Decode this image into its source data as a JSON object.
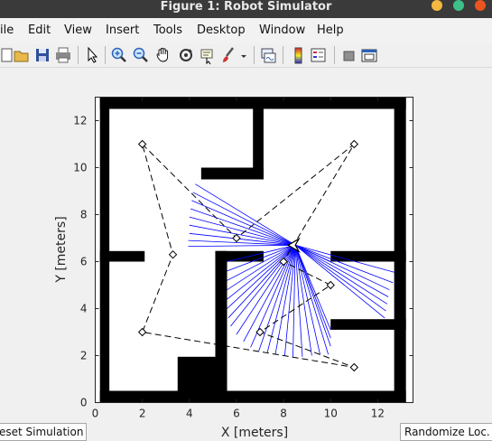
{
  "window": {
    "title": "Figure 1: Robot Simulator"
  },
  "menu": [
    {
      "label": "ile"
    },
    {
      "label": "Edit"
    },
    {
      "label": "View"
    },
    {
      "label": "Insert"
    },
    {
      "label": "Tools"
    },
    {
      "label": "Desktop"
    },
    {
      "label": "Window"
    },
    {
      "label": "Help"
    }
  ],
  "toolbar": {
    "icons": [
      "new-figure-icon",
      "open-file-icon",
      "save-icon",
      "print-icon",
      "pointer-icon",
      "zoom-in-icon",
      "zoom-out-icon",
      "pan-icon",
      "rotate-3d-icon",
      "data-cursor-icon",
      "brush-icon",
      "dropdown-arrow-icon",
      "link-plot-icon",
      "colorbar-icon",
      "legend-icon",
      "hide-plot-tools-icon",
      "show-plot-tools-icon"
    ]
  },
  "buttons": {
    "reset": "eset Simulation",
    "randomize": "Randomize Loc."
  },
  "colors": {
    "wall": "#000000",
    "lidar": "#0000ff",
    "path": "#000000",
    "titlebar_bg": "#3a3a3a",
    "window_btn_close": "#e95420",
    "window_btn_max": "#f5b841",
    "window_btn_min": "#3dbf88"
  },
  "chart_data": {
    "type": "scatter",
    "title": "",
    "xlabel": "X [meters]",
    "ylabel": "Y [meters]",
    "xlim": [
      0,
      13.5
    ],
    "ylim": [
      0,
      13
    ],
    "xticks": [
      0,
      2,
      4,
      6,
      8,
      10,
      12
    ],
    "yticks": [
      0,
      2,
      4,
      6,
      8,
      10,
      12
    ],
    "grid": false,
    "legend": "none",
    "walls": [
      {
        "x0": 0.2,
        "y0": 0,
        "x1": 13.2,
        "y1": 0.5
      },
      {
        "x0": 0.2,
        "y0": 12.5,
        "x1": 13.2,
        "y1": 13
      },
      {
        "x0": 0.2,
        "y0": 0,
        "x1": 0.6,
        "y1": 13
      },
      {
        "x0": 12.7,
        "y0": 0,
        "x1": 13.2,
        "y1": 13
      },
      {
        "x0": 6.7,
        "y0": 9.5,
        "x1": 7.15,
        "y1": 12.6
      },
      {
        "x0": 4.5,
        "y0": 9.5,
        "x1": 7.15,
        "y1": 10
      },
      {
        "x0": 0.2,
        "y0": 6,
        "x1": 2.1,
        "y1": 6.45
      },
      {
        "x0": 5.1,
        "y0": 6,
        "x1": 7.15,
        "y1": 6.45
      },
      {
        "x0": 5.1,
        "y0": 0,
        "x1": 5.6,
        "y1": 6.45
      },
      {
        "x0": 3.5,
        "y0": 0,
        "x1": 5.6,
        "y1": 1.95
      },
      {
        "x0": 10,
        "y0": 6,
        "x1": 13.2,
        "y1": 6.45
      },
      {
        "x0": 10,
        "y0": 3.1,
        "x1": 13.2,
        "y1": 3.55
      }
    ],
    "waypoints": [
      {
        "x": 2,
        "y": 11
      },
      {
        "x": 6,
        "y": 7
      },
      {
        "x": 11,
        "y": 11
      },
      {
        "x": 8,
        "y": 6
      },
      {
        "x": 10,
        "y": 5
      },
      {
        "x": 7,
        "y": 3
      },
      {
        "x": 11,
        "y": 1.5
      },
      {
        "x": 2,
        "y": 3
      },
      {
        "x": 3.3,
        "y": 6.3
      },
      {
        "x": 2,
        "y": 11
      }
    ],
    "robot": {
      "x": 8.5,
      "y": 6.7,
      "heading_deg": 180
    },
    "lidar_endpoints": [
      [
        4.25,
        9.3
      ],
      [
        4.15,
        8.95
      ],
      [
        4.1,
        8.6
      ],
      [
        4.05,
        8.25
      ],
      [
        4.0,
        7.9
      ],
      [
        4.0,
        7.55
      ],
      [
        4.0,
        7.2
      ],
      [
        3.95,
        6.9
      ],
      [
        3.95,
        6.65
      ],
      [
        5.6,
        6.0
      ],
      [
        5.6,
        5.6
      ],
      [
        5.6,
        5.2
      ],
      [
        5.6,
        4.8
      ],
      [
        5.6,
        4.4
      ],
      [
        5.6,
        4.0
      ],
      [
        5.65,
        3.6
      ],
      [
        5.75,
        3.25
      ],
      [
        6.0,
        2.9
      ],
      [
        6.3,
        2.6
      ],
      [
        6.6,
        2.35
      ],
      [
        6.95,
        2.2
      ],
      [
        7.3,
        2.1
      ],
      [
        7.65,
        2.05
      ],
      [
        8.05,
        2.0
      ],
      [
        8.4,
        1.95
      ],
      [
        8.8,
        1.95
      ],
      [
        9.2,
        2.0
      ],
      [
        9.55,
        2.05
      ],
      [
        9.9,
        2.05
      ],
      [
        10.0,
        2.4
      ],
      [
        10.0,
        2.75
      ],
      [
        10.0,
        3.1
      ],
      [
        12.3,
        3.6
      ],
      [
        12.35,
        3.9
      ],
      [
        12.4,
        4.2
      ],
      [
        12.45,
        4.5
      ],
      [
        12.5,
        4.8
      ],
      [
        12.65,
        5.1
      ],
      [
        12.7,
        5.55
      ],
      [
        10.0,
        6.0
      ]
    ]
  }
}
